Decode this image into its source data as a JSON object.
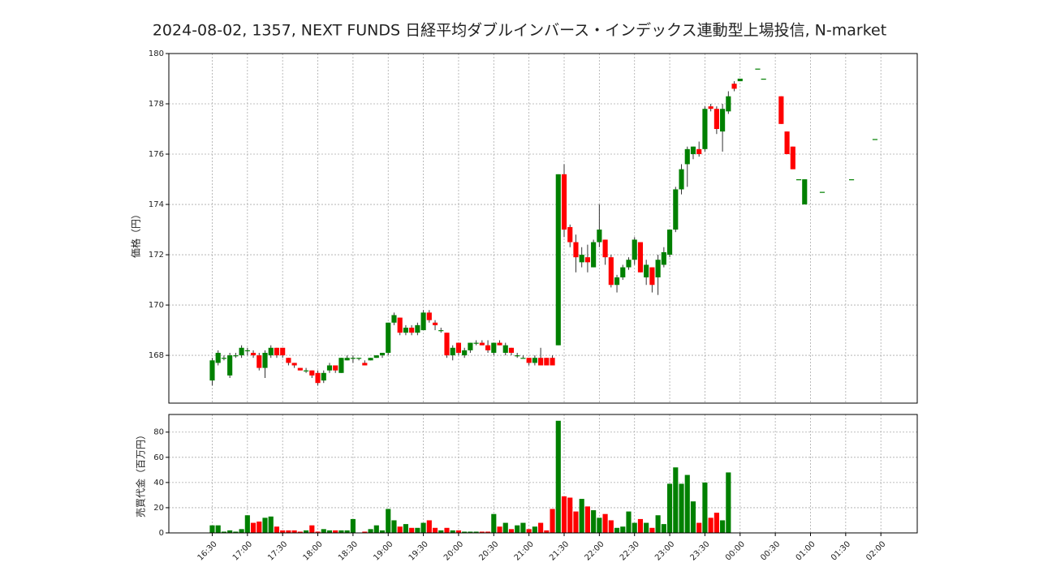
{
  "chart_data": {
    "type": "candlestick",
    "title": "2024-08-02, 1357, NEXT FUNDS 日経平均ダブルインバース・インデックス連動型上場投信, N-market",
    "ylabel": "価格（円）",
    "volume_label": "売買代金（百万円）",
    "up_color": "#008000",
    "down_color": "#ff0000",
    "grid": true,
    "ylim": [
      166.1,
      180
    ],
    "yticks": [
      168,
      170,
      172,
      174,
      176,
      178,
      180
    ],
    "volume_ylim": [
      0,
      94
    ],
    "volume_yticks": [
      0,
      20,
      40,
      60,
      80
    ],
    "xlim": [
      "15:53",
      "02:31"
    ],
    "xticks": [
      "16:30",
      "17:00",
      "17:30",
      "18:00",
      "18:30",
      "19:00",
      "19:30",
      "20:00",
      "20:30",
      "21:00",
      "21:30",
      "22:00",
      "22:30",
      "23:00",
      "23:30",
      "00:00",
      "00:30",
      "01:00",
      "01:30",
      "02:00"
    ],
    "x": [
      "16:30",
      "16:35",
      "16:40",
      "16:45",
      "16:50",
      "16:55",
      "17:00",
      "17:05",
      "17:10",
      "17:15",
      "17:20",
      "17:25",
      "17:30",
      "17:35",
      "17:40",
      "17:45",
      "17:50",
      "17:55",
      "18:00",
      "18:05",
      "18:10",
      "18:15",
      "18:20",
      "18:25",
      "18:30",
      "18:35",
      "18:40",
      "18:45",
      "18:50",
      "18:55",
      "19:00",
      "19:05",
      "19:10",
      "19:15",
      "19:20",
      "19:25",
      "19:30",
      "19:35",
      "19:40",
      "19:45",
      "19:50",
      "19:55",
      "20:00",
      "20:05",
      "20:10",
      "20:15",
      "20:20",
      "20:25",
      "20:30",
      "20:35",
      "20:40",
      "20:45",
      "20:50",
      "20:55",
      "21:00",
      "21:05",
      "21:10",
      "21:15",
      "21:20",
      "21:25",
      "21:30",
      "21:35",
      "21:40",
      "21:45",
      "21:50",
      "21:55",
      "22:00",
      "22:05",
      "22:10",
      "22:15",
      "22:20",
      "22:25",
      "22:30",
      "22:35",
      "22:40",
      "22:45",
      "22:50",
      "22:55",
      "23:00",
      "23:05",
      "23:10",
      "23:15",
      "23:20",
      "23:25",
      "23:30",
      "23:35",
      "23:40",
      "23:45",
      "23:50",
      "23:55",
      "00:00",
      "00:15",
      "00:20",
      "00:35",
      "00:40",
      "00:45",
      "00:50",
      "00:55",
      "01:10",
      "01:35",
      "01:55"
    ],
    "ohlc": [
      [
        167.0,
        167.9,
        166.8,
        167.8
      ],
      [
        167.7,
        168.2,
        167.6,
        168.1
      ],
      [
        167.9,
        168.0,
        167.8,
        167.9
      ],
      [
        167.2,
        168.1,
        167.1,
        168.0
      ],
      [
        168.0,
        168.1,
        167.9,
        168.0
      ],
      [
        168.0,
        168.4,
        167.9,
        168.3
      ],
      [
        168.2,
        168.3,
        168.0,
        168.2
      ],
      [
        168.1,
        168.2,
        167.9,
        168.0
      ],
      [
        168.0,
        168.1,
        167.4,
        167.5
      ],
      [
        167.5,
        168.2,
        167.1,
        168.1
      ],
      [
        168.0,
        168.4,
        167.9,
        168.3
      ],
      [
        168.3,
        168.3,
        167.9,
        168.0
      ],
      [
        168.3,
        168.3,
        167.9,
        168.0
      ],
      [
        167.9,
        167.9,
        167.6,
        167.7
      ],
      [
        167.7,
        167.7,
        167.5,
        167.6
      ],
      [
        167.5,
        167.5,
        167.4,
        167.4
      ],
      [
        167.4,
        167.5,
        167.3,
        167.4
      ],
      [
        167.4,
        167.4,
        167.1,
        167.2
      ],
      [
        167.3,
        167.4,
        166.8,
        166.9
      ],
      [
        167.0,
        167.4,
        166.9,
        167.3
      ],
      [
        167.4,
        167.7,
        167.3,
        167.6
      ],
      [
        167.6,
        167.6,
        167.3,
        167.4
      ],
      [
        167.3,
        167.9,
        167.3,
        167.9
      ],
      [
        167.8,
        168.0,
        167.8,
        167.9
      ],
      [
        167.9,
        168.0,
        167.7,
        167.9
      ],
      [
        167.9,
        167.9,
        167.8,
        167.9
      ],
      [
        167.7,
        167.8,
        167.6,
        167.6
      ],
      [
        167.8,
        167.9,
        167.8,
        167.9
      ],
      [
        167.9,
        168.0,
        167.9,
        168.0
      ],
      [
        168.0,
        168.1,
        167.9,
        168.1
      ],
      [
        168.1,
        169.3,
        168.0,
        169.3
      ],
      [
        169.3,
        169.7,
        169.2,
        169.6
      ],
      [
        169.5,
        169.5,
        168.8,
        168.9
      ],
      [
        168.9,
        169.2,
        168.8,
        169.1
      ],
      [
        169.1,
        169.2,
        168.8,
        168.9
      ],
      [
        168.9,
        169.3,
        168.8,
        169.2
      ],
      [
        169.0,
        169.8,
        169.0,
        169.7
      ],
      [
        169.7,
        169.8,
        169.3,
        169.4
      ],
      [
        169.3,
        169.4,
        169.0,
        169.2
      ],
      [
        169.0,
        169.1,
        168.9,
        169.0
      ],
      [
        168.9,
        168.9,
        167.9,
        168.0
      ],
      [
        168.0,
        168.4,
        167.8,
        168.3
      ],
      [
        168.5,
        168.5,
        168.0,
        168.1
      ],
      [
        168.0,
        168.3,
        167.9,
        168.2
      ],
      [
        168.2,
        168.5,
        168.1,
        168.5
      ],
      [
        168.5,
        168.6,
        168.4,
        168.5
      ],
      [
        168.5,
        168.6,
        168.4,
        168.4
      ],
      [
        168.4,
        168.6,
        168.1,
        168.2
      ],
      [
        168.1,
        168.5,
        168.0,
        168.5
      ],
      [
        168.5,
        168.6,
        168.4,
        168.4
      ],
      [
        168.1,
        168.5,
        168.0,
        168.4
      ],
      [
        168.3,
        168.3,
        168.0,
        168.1
      ],
      [
        168.0,
        168.1,
        167.9,
        168.0
      ],
      [
        167.9,
        168.0,
        167.9,
        167.9
      ],
      [
        167.9,
        167.9,
        167.6,
        167.7
      ],
      [
        167.7,
        168.0,
        167.6,
        167.9
      ],
      [
        167.9,
        168.3,
        167.6,
        167.6
      ],
      [
        167.9,
        167.9,
        167.6,
        167.6
      ],
      [
        167.9,
        168.0,
        167.6,
        167.6
      ],
      [
        168.4,
        175.2,
        168.4,
        175.2
      ],
      [
        175.2,
        175.6,
        172.7,
        173.0
      ],
      [
        173.1,
        173.2,
        172.3,
        172.5
      ],
      [
        172.5,
        172.8,
        171.3,
        171.9
      ],
      [
        171.7,
        172.3,
        171.5,
        172.0
      ],
      [
        171.9,
        172.4,
        171.3,
        171.7
      ],
      [
        171.5,
        172.6,
        171.5,
        172.5
      ],
      [
        172.5,
        174.0,
        172.3,
        173.0
      ],
      [
        172.6,
        172.6,
        171.6,
        171.9
      ],
      [
        171.9,
        172.0,
        170.7,
        170.8
      ],
      [
        170.8,
        171.2,
        170.5,
        171.1
      ],
      [
        171.1,
        171.6,
        171.0,
        171.5
      ],
      [
        171.5,
        171.9,
        171.4,
        171.8
      ],
      [
        171.8,
        172.7,
        171.6,
        172.6
      ],
      [
        172.5,
        172.5,
        171.3,
        171.3
      ],
      [
        171.1,
        171.8,
        170.8,
        171.6
      ],
      [
        171.5,
        171.5,
        170.5,
        170.8
      ],
      [
        171.1,
        172.0,
        170.4,
        171.8
      ],
      [
        171.6,
        172.3,
        171.5,
        172.1
      ],
      [
        172.0,
        173.0,
        171.9,
        173.0
      ],
      [
        173.0,
        174.7,
        172.9,
        174.6
      ],
      [
        174.6,
        175.6,
        174.4,
        175.4
      ],
      [
        175.6,
        176.3,
        174.7,
        176.2
      ],
      [
        176.0,
        176.3,
        175.8,
        176.3
      ],
      [
        176.2,
        176.5,
        175.9,
        176.0
      ],
      [
        176.2,
        177.9,
        176.1,
        177.8
      ],
      [
        177.9,
        178.0,
        177.7,
        177.8
      ],
      [
        177.8,
        177.9,
        176.8,
        177.0
      ],
      [
        176.9,
        178.0,
        176.1,
        177.8
      ],
      [
        177.7,
        178.5,
        177.6,
        178.3
      ],
      [
        178.8,
        178.9,
        178.5,
        178.6
      ],
      [
        178.9,
        179.0,
        178.9,
        179.0
      ],
      [
        179.4,
        179.4,
        179.4,
        179.4
      ],
      [
        179.0,
        179.0,
        179.0,
        179.0
      ],
      [
        178.3,
        178.3,
        177.2,
        177.2
      ],
      [
        176.9,
        176.9,
        176.0,
        176.0
      ],
      [
        176.3,
        176.3,
        175.4,
        175.4
      ],
      [
        175.0,
        175.0,
        175.0,
        175.0
      ],
      [
        174.0,
        175.0,
        174.0,
        175.0
      ],
      [
        174.5,
        174.5,
        174.5,
        174.5
      ],
      [
        175.0,
        175.0,
        175.0,
        175.0
      ],
      [
        176.6,
        176.6,
        176.6,
        176.6
      ]
    ],
    "volume": [
      6,
      6,
      1,
      2,
      1,
      3,
      14,
      8,
      9,
      12,
      13,
      5,
      2,
      2,
      2,
      1,
      2,
      6,
      1,
      3,
      2,
      2,
      2,
      2,
      11,
      0,
      1,
      3,
      6,
      2,
      19,
      10,
      5,
      7,
      4,
      4,
      8,
      10,
      4,
      2,
      4,
      2,
      2,
      1,
      1,
      1,
      1,
      1,
      15,
      5,
      8,
      3,
      6,
      8,
      3,
      5,
      8,
      2,
      19,
      89,
      29,
      28,
      17,
      27,
      21,
      18,
      12,
      15,
      10,
      4,
      5,
      17,
      8,
      11,
      8,
      4,
      14,
      7,
      39,
      52,
      39,
      46,
      25,
      8,
      40,
      12,
      16,
      10,
      48,
      0,
      0,
      0,
      0,
      0,
      0,
      0,
      0,
      0,
      0,
      0,
      0
    ]
  }
}
